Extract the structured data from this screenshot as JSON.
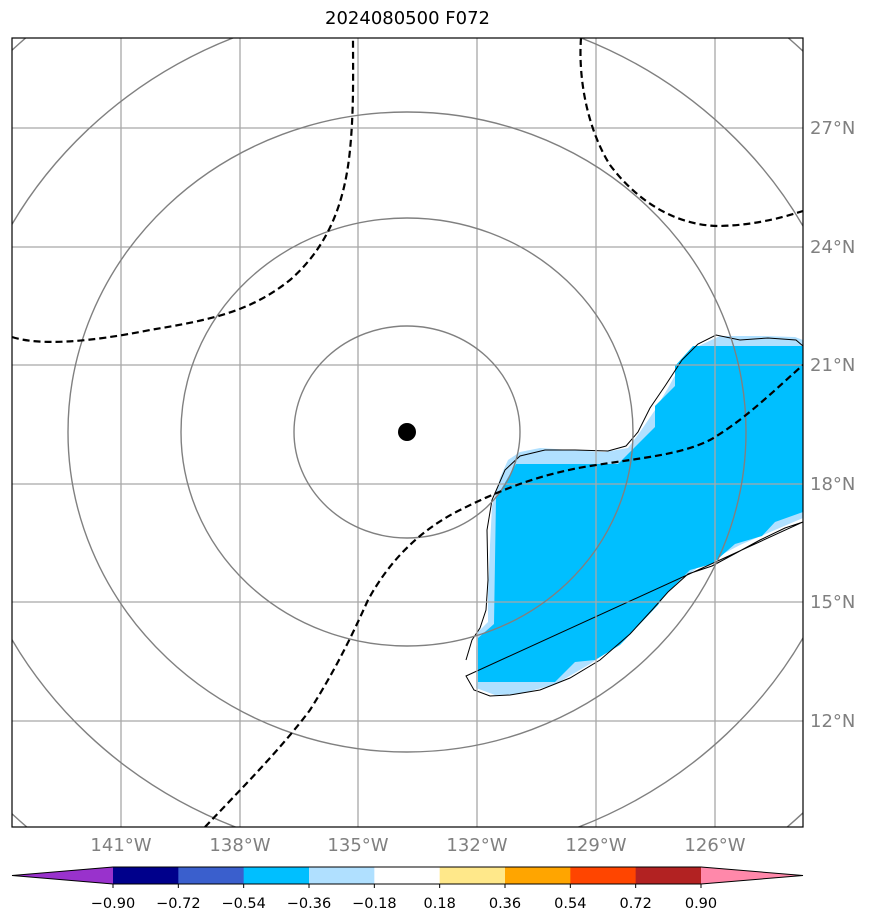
{
  "title": "2024080500 F072",
  "lon_labels": [
    "141°W",
    "138°W",
    "135°W",
    "132°W",
    "129°W",
    "126°W"
  ],
  "lat_labels": [
    "27°N",
    "24°N",
    "21°N",
    "18°N",
    "15°N",
    "12°N"
  ],
  "colorbar": {
    "ticks": [
      "−0.90",
      "−0.72",
      "−0.54",
      "−0.36",
      "−0.18",
      "0.18",
      "0.36",
      "0.54",
      "0.72",
      "0.90"
    ],
    "colors": [
      "#9932cc",
      "#00008b",
      "#3a5fcd",
      "#00bfff",
      "#b0e0ff",
      "#ffffff",
      "#ffe88a",
      "#ffa500",
      "#ff4500",
      "#b22222",
      "#ff88aa"
    ]
  },
  "map": {
    "center_marker": "storm-center",
    "shaded_region_color": "#00bfff",
    "shaded_region_edge_color": "#b0e0ff",
    "contour_style": "dashed black",
    "range_rings": 5,
    "extent": {
      "lon_min": -143.5,
      "lon_max": -123.5,
      "lat_min": 9.5,
      "lat_max": 29.5
    }
  }
}
